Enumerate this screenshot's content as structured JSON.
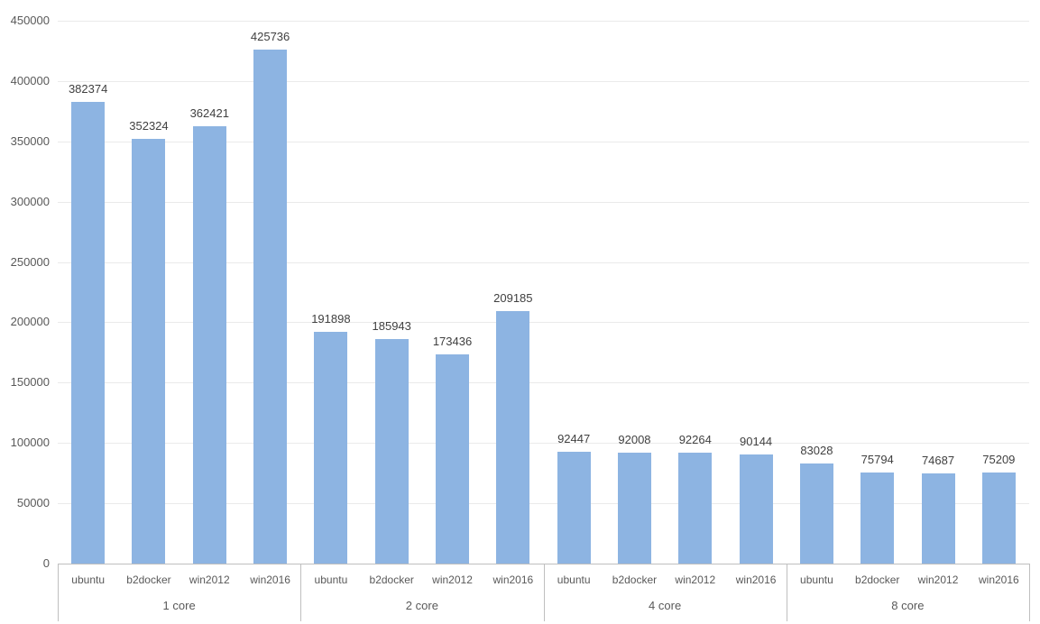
{
  "chart_data": {
    "type": "bar",
    "title": "",
    "xlabel": "",
    "ylabel": "",
    "categories": [
      "ubuntu",
      "b2docker",
      "win2012",
      "win2016"
    ],
    "groups": [
      {
        "label": "1 core",
        "values": [
          382374,
          352324,
          362421,
          425736
        ]
      },
      {
        "label": "2 core",
        "values": [
          191898,
          185943,
          173436,
          209185
        ]
      },
      {
        "label": "4 core",
        "values": [
          92447,
          92008,
          92264,
          90144
        ]
      },
      {
        "label": "8 core",
        "values": [
          83028,
          75794,
          74687,
          75209
        ]
      }
    ],
    "ylim": [
      0,
      450000
    ],
    "yticks": [
      0,
      50000,
      100000,
      150000,
      200000,
      250000,
      300000,
      350000,
      400000,
      450000
    ],
    "grid": true,
    "legend": "none",
    "data_labels": true,
    "colors": {
      "bar": "#8DB4E2",
      "gridline": "#EAEAEA",
      "axis_line": "#BFBFBF",
      "tick_text": "#595959",
      "value_text": "#404040",
      "category_text": "#595959",
      "background": "#FFFFFF"
    }
  }
}
